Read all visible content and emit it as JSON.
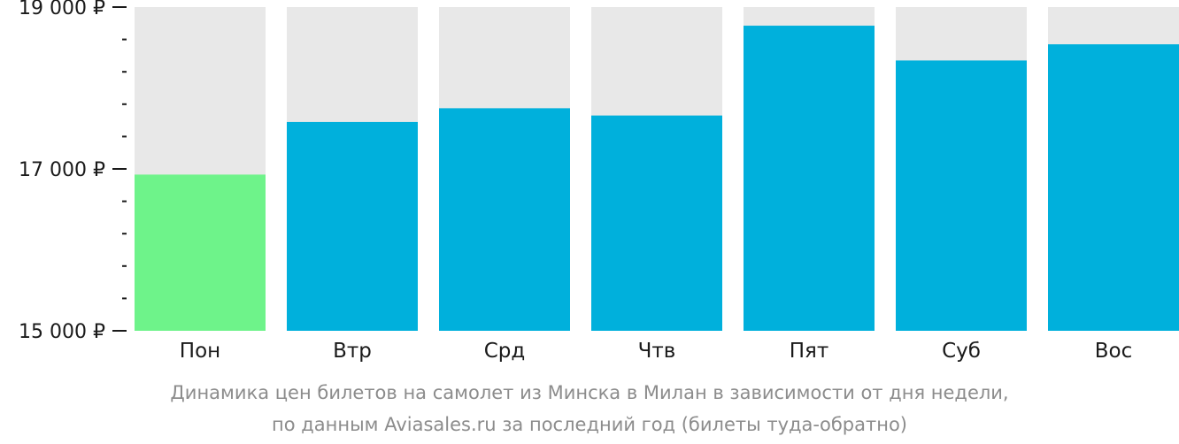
{
  "chart_data": {
    "type": "bar",
    "categories": [
      "Пон",
      "Втр",
      "Срд",
      "Чтв",
      "Пят",
      "Суб",
      "Вос"
    ],
    "values": [
      16930,
      17580,
      17750,
      17660,
      18770,
      18340,
      18540
    ],
    "ylim": [
      15000,
      19000
    ],
    "y_ticks_labeled": [
      {
        "value": 15000,
        "label": "15 000 ₽"
      },
      {
        "value": 17000,
        "label": "17 000 ₽"
      },
      {
        "value": 19000,
        "label": "19 000 ₽"
      }
    ],
    "y_minor_step": 400,
    "lowest_category": "Пон",
    "colors": {
      "bar": "#00b0dc",
      "lowest_bar": "#6ef38a",
      "bar_background": "#e8e8e8",
      "axis": "#1a1a1a"
    },
    "caption": [
      "Динамика цен билетов на самолет из Минска в Милан в зависимости от дня недели,",
      "по данным Aviasales.ru за последний год (билеты туда-обратно)"
    ]
  }
}
